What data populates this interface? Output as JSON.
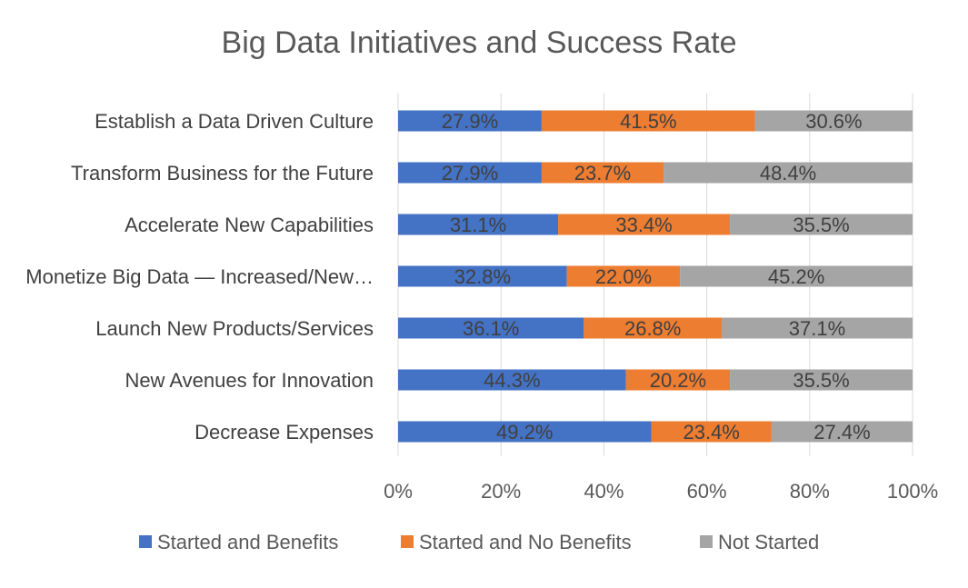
{
  "chart_data": {
    "type": "bar",
    "orientation": "horizontal",
    "stacked": true,
    "title": "Big Data Initiatives and Success Rate",
    "categories": [
      "Establish a Data Driven Culture",
      "Transform Business for the Future",
      "Accelerate New Capabilities",
      "Monetize Big Data — Increased/New…",
      "Launch New Products/Services",
      "New Avenues for Innovation",
      "Decrease Expenses"
    ],
    "series": [
      {
        "name": "Started and Benefits",
        "color": "#4472C4",
        "values": [
          27.9,
          27.9,
          31.1,
          32.8,
          36.1,
          44.3,
          49.2
        ],
        "labels": [
          "27.9%",
          "27.9%",
          "31.1%",
          "32.8%",
          "36.1%",
          "44.3%",
          "49.2%"
        ]
      },
      {
        "name": "Started and No Benefits",
        "color": "#ED7D31",
        "values": [
          41.5,
          23.7,
          33.4,
          22.0,
          26.8,
          20.2,
          23.4
        ],
        "labels": [
          "41.5%",
          "23.7%",
          "33.4%",
          "22.0%",
          "26.8%",
          "20.2%",
          "23.4%"
        ]
      },
      {
        "name": "Not Started",
        "color": "#A5A5A5",
        "values": [
          30.6,
          48.4,
          35.5,
          45.2,
          37.1,
          35.5,
          27.4
        ],
        "labels": [
          "30.6%",
          "48.4%",
          "35.5%",
          "45.2%",
          "37.1%",
          "35.5%",
          "27.4%"
        ]
      }
    ],
    "xlim": [
      0,
      100
    ],
    "xticks": [
      "0%",
      "20%",
      "40%",
      "60%",
      "80%",
      "100%"
    ],
    "gridlines": true,
    "legend_position": "bottom"
  }
}
